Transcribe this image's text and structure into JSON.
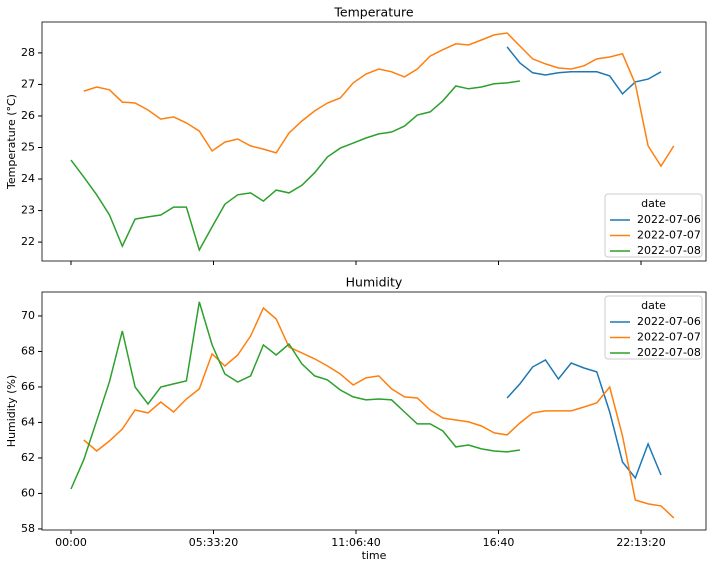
{
  "chart_data": [
    {
      "type": "line",
      "title": "Temperature",
      "ylabel": "Temperature (°C)",
      "x": [
        0,
        1800,
        3600,
        5400,
        7200,
        9000,
        10800,
        12600,
        14400,
        16200,
        18000,
        19800,
        21600,
        23400,
        25200,
        27000,
        28800,
        30600,
        32400,
        34200,
        36000,
        37800,
        39600,
        41400,
        43200,
        45000,
        46800,
        48600,
        50400,
        52200,
        54000,
        55800,
        57600,
        59400,
        61200,
        63000,
        64800,
        66600,
        68400,
        70200,
        72000,
        73800,
        75600,
        77400,
        79200,
        81000,
        82800,
        84600
      ],
      "xlim": [
        -4070,
        89120
      ],
      "xticks": [
        0,
        20000,
        40000,
        60000,
        80000
      ],
      "ylim": [
        21.4,
        28.98
      ],
      "yticks": [
        22,
        23,
        24,
        25,
        26,
        27,
        28
      ],
      "legend_title": "date",
      "legend": "lower right",
      "series": [
        {
          "name": "2022-07-06",
          "color": "#1f77b4",
          "values": [
            null,
            null,
            null,
            null,
            null,
            null,
            null,
            null,
            null,
            null,
            null,
            null,
            null,
            null,
            null,
            null,
            null,
            null,
            null,
            null,
            null,
            null,
            null,
            null,
            null,
            null,
            null,
            null,
            null,
            null,
            null,
            null,
            null,
            null,
            28.19,
            27.68,
            27.37,
            27.3,
            27.37,
            27.4,
            27.4,
            27.4,
            27.27,
            26.7,
            27.08,
            27.17,
            27.4,
            null
          ]
        },
        {
          "name": "2022-07-07",
          "color": "#ff7f0e",
          "values": [
            null,
            26.79,
            26.92,
            26.83,
            26.44,
            26.41,
            26.19,
            25.9,
            25.97,
            25.78,
            25.52,
            24.89,
            25.17,
            25.27,
            25.05,
            24.95,
            24.83,
            25.46,
            25.84,
            26.16,
            26.41,
            26.57,
            27.05,
            27.33,
            27.49,
            27.4,
            27.24,
            27.49,
            27.9,
            28.1,
            28.29,
            28.25,
            28.41,
            28.57,
            28.63,
            28.22,
            27.81,
            27.65,
            27.52,
            27.49,
            27.59,
            27.81,
            27.87,
            27.97,
            27.02,
            25.05,
            24.41,
            25.05
          ]
        },
        {
          "name": "2022-07-08",
          "color": "#2ca02c",
          "values": [
            24.6,
            24.06,
            23.5,
            22.86,
            21.87,
            22.73,
            22.8,
            22.86,
            23.11,
            23.11,
            21.75,
            22.48,
            23.2,
            23.5,
            23.56,
            23.3,
            23.65,
            23.56,
            23.8,
            24.2,
            24.7,
            24.98,
            25.14,
            25.3,
            25.43,
            25.49,
            25.68,
            26.03,
            26.13,
            26.48,
            26.95,
            26.86,
            26.92,
            27.02,
            27.05,
            27.11,
            null,
            null,
            null,
            null,
            null,
            null,
            null,
            null,
            null,
            null,
            null,
            null
          ]
        }
      ]
    },
    {
      "type": "line",
      "title": "Humidity",
      "ylabel": "Humidity (%)",
      "xlabel": "time",
      "x": [
        0,
        1800,
        3600,
        5400,
        7200,
        9000,
        10800,
        12600,
        14400,
        16200,
        18000,
        19800,
        21600,
        23400,
        25200,
        27000,
        28800,
        30600,
        32400,
        34200,
        36000,
        37800,
        39600,
        41400,
        43200,
        45000,
        46800,
        48600,
        50400,
        52200,
        54000,
        55800,
        57600,
        59400,
        61200,
        63000,
        64800,
        66600,
        68400,
        70200,
        72000,
        73800,
        75600,
        77400,
        79200,
        81000,
        82800,
        84600
      ],
      "xlim": [
        -4070,
        89120
      ],
      "xticks": [
        {
          "value": 0,
          "label": "00:00"
        },
        {
          "value": 20000,
          "label": "05:33:20"
        },
        {
          "value": 40000,
          "label": "11:06:40"
        },
        {
          "value": 60000,
          "label": "16:40"
        },
        {
          "value": 80000,
          "label": "22:13:20"
        }
      ],
      "ylim": [
        57.94,
        71.35
      ],
      "yticks": [
        58,
        60,
        62,
        64,
        66,
        68,
        70
      ],
      "legend_title": "date",
      "legend": "upper right",
      "series": [
        {
          "name": "2022-07-06",
          "color": "#1f77b4",
          "values": [
            null,
            null,
            null,
            null,
            null,
            null,
            null,
            null,
            null,
            null,
            null,
            null,
            null,
            null,
            null,
            null,
            null,
            null,
            null,
            null,
            null,
            null,
            null,
            null,
            null,
            null,
            null,
            null,
            null,
            null,
            null,
            null,
            null,
            null,
            65.38,
            66.17,
            67.13,
            67.52,
            66.45,
            67.35,
            67.07,
            66.85,
            64.59,
            61.77,
            60.87,
            62.79,
            61.04,
            null
          ]
        },
        {
          "name": "2022-07-07",
          "color": "#ff7f0e",
          "values": [
            null,
            63.01,
            62.39,
            62.96,
            63.63,
            64.7,
            64.54,
            65.15,
            64.59,
            65.32,
            65.89,
            67.86,
            67.18,
            67.8,
            68.87,
            70.45,
            69.83,
            68.25,
            67.92,
            67.58,
            67.18,
            66.73,
            66.11,
            66.51,
            66.62,
            65.89,
            65.44,
            65.38,
            64.7,
            64.25,
            64.14,
            64.03,
            63.8,
            63.41,
            63.3,
            63.97,
            64.54,
            64.65,
            64.65,
            64.65,
            64.87,
            65.1,
            66.0,
            63.24,
            59.63,
            59.41,
            59.3,
            58.62
          ]
        },
        {
          "name": "2022-07-08",
          "color": "#2ca02c",
          "values": [
            60.25,
            61.9,
            64.1,
            66.3,
            69.15,
            66.0,
            65.04,
            66.0,
            66.17,
            66.34,
            70.79,
            68.37,
            66.73,
            66.28,
            66.62,
            68.37,
            67.8,
            68.42,
            67.3,
            66.62,
            66.4,
            65.83,
            65.44,
            65.27,
            65.32,
            65.27,
            64.59,
            63.92,
            63.92,
            63.52,
            62.62,
            62.73,
            62.51,
            62.39,
            62.34,
            62.45,
            null,
            null,
            null,
            null,
            null,
            null,
            null,
            null,
            null,
            null,
            null,
            null
          ]
        }
      ]
    }
  ]
}
